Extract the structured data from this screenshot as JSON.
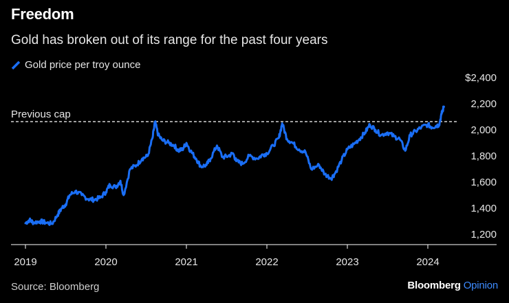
{
  "chart_data": {
    "type": "line",
    "title": "Freedom",
    "subtitle": "Gold has broken out of its range for the past four years",
    "legend": [
      "Gold price per troy ounce"
    ],
    "xlabel": "",
    "ylabel": "",
    "ylim": [
      1150,
      2450
    ],
    "x_ticks": [
      "2019",
      "2020",
      "2021",
      "2022",
      "2023",
      "2024"
    ],
    "y_ticks": [
      {
        "value": 1200,
        "label": "1,200"
      },
      {
        "value": 1400,
        "label": "1,400"
      },
      {
        "value": 1600,
        "label": "1,600"
      },
      {
        "value": 1800,
        "label": "1,800"
      },
      {
        "value": 2000,
        "label": "2,000"
      },
      {
        "value": 2200,
        "label": "2,200"
      },
      {
        "value": 2400,
        "label": "$2,400"
      }
    ],
    "reference_line": {
      "value": 2063,
      "label": "Previous cap"
    },
    "series": [
      {
        "name": "Gold price per troy ounce",
        "color": "#1a6ef5",
        "x": [
          2019.0,
          2019.05,
          2019.1,
          2019.18,
          2019.25,
          2019.33,
          2019.4,
          2019.45,
          2019.5,
          2019.55,
          2019.62,
          2019.7,
          2019.78,
          2019.85,
          2019.93,
          2020.0,
          2020.05,
          2020.12,
          2020.18,
          2020.22,
          2020.3,
          2020.38,
          2020.45,
          2020.52,
          2020.58,
          2020.61,
          2020.65,
          2020.7,
          2020.78,
          2020.85,
          2020.9,
          2020.95,
          2021.0,
          2021.05,
          2021.12,
          2021.18,
          2021.25,
          2021.3,
          2021.38,
          2021.45,
          2021.52,
          2021.58,
          2021.62,
          2021.7,
          2021.78,
          2021.88,
          2021.95,
          2022.0,
          2022.08,
          2022.15,
          2022.19,
          2022.25,
          2022.32,
          2022.4,
          2022.48,
          2022.55,
          2022.65,
          2022.72,
          2022.8,
          2022.85,
          2022.93,
          2023.0,
          2023.08,
          2023.15,
          2023.22,
          2023.28,
          2023.35,
          2023.42,
          2023.5,
          2023.58,
          2023.65,
          2023.72,
          2023.78,
          2023.85,
          2023.92,
          2024.0,
          2024.05,
          2024.1,
          2024.14,
          2024.17,
          2024.2
        ],
        "values": [
          1285,
          1310,
          1290,
          1300,
          1290,
          1280,
          1350,
          1400,
          1430,
          1500,
          1530,
          1500,
          1470,
          1465,
          1480,
          1525,
          1580,
          1560,
          1610,
          1500,
          1700,
          1730,
          1780,
          1800,
          1940,
          2063,
          1960,
          1920,
          1900,
          1880,
          1840,
          1850,
          1900,
          1840,
          1780,
          1720,
          1730,
          1780,
          1880,
          1790,
          1800,
          1820,
          1760,
          1740,
          1800,
          1780,
          1810,
          1820,
          1880,
          1940,
          2050,
          1930,
          1900,
          1850,
          1830,
          1700,
          1730,
          1660,
          1630,
          1670,
          1770,
          1850,
          1890,
          1930,
          1980,
          2040,
          2000,
          1960,
          1980,
          1950,
          1930,
          1840,
          1960,
          1990,
          2020,
          2040,
          2020,
          2030,
          2040,
          2120,
          2178
        ]
      }
    ]
  },
  "source": "Source: Bloomberg",
  "brand": {
    "name": "Bloomberg",
    "suffix": "Opinion"
  }
}
